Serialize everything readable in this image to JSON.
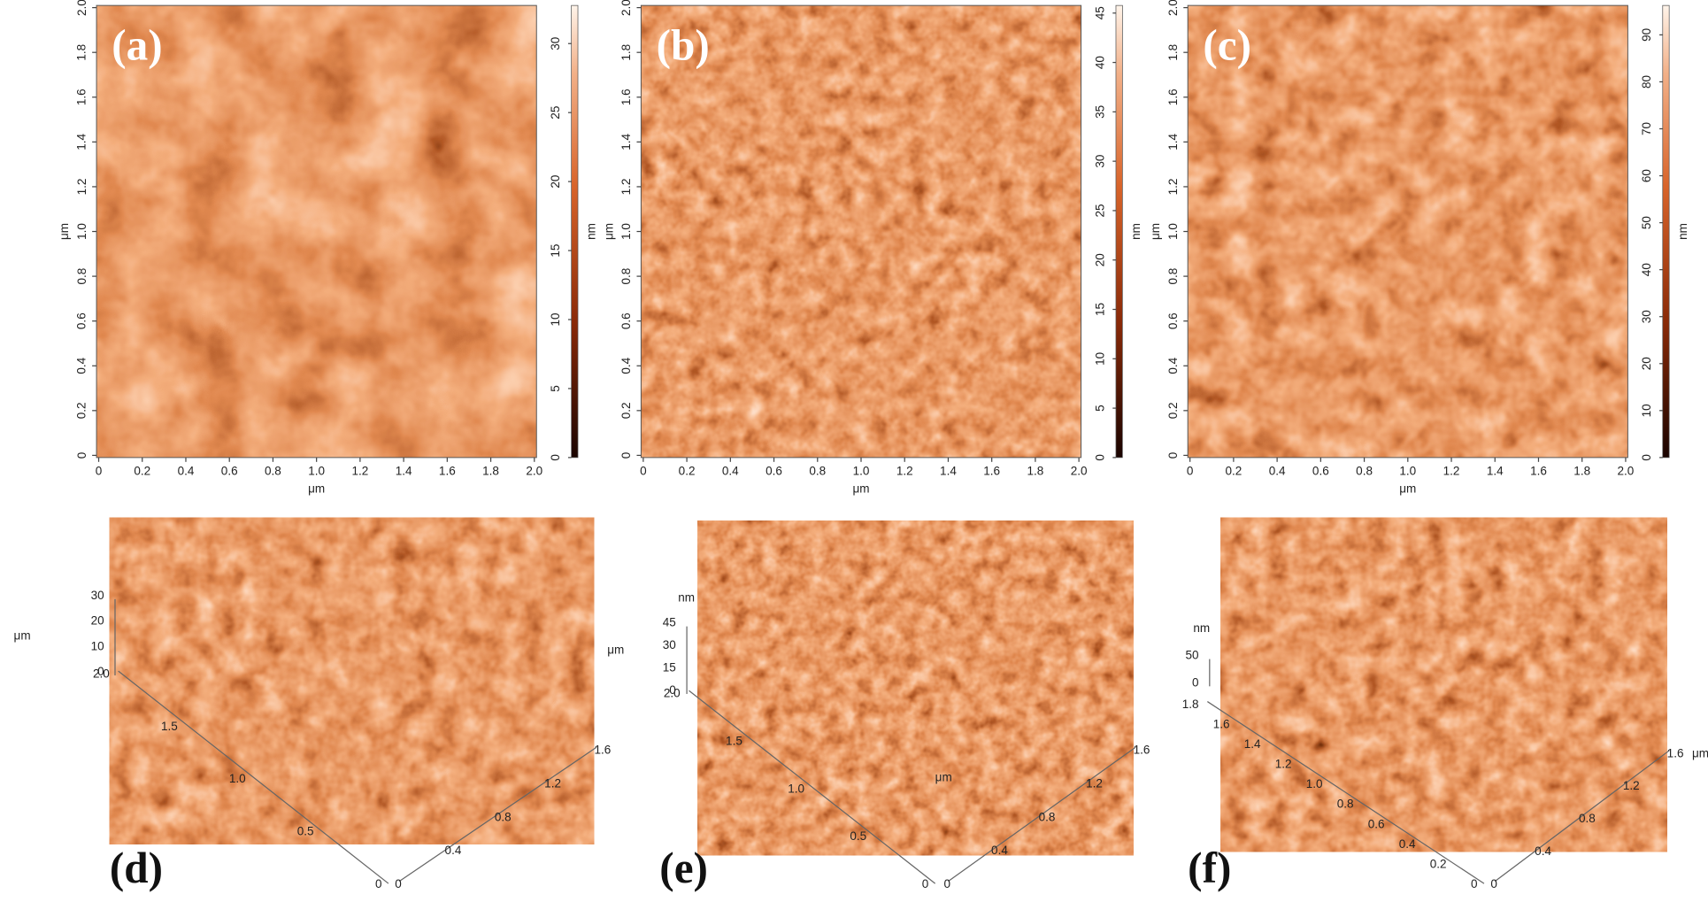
{
  "panels_2d": [
    {
      "label": "(a)",
      "x_ticks": [
        "0",
        "0.2",
        "0.4",
        "0.6",
        "0.8",
        "1.0",
        "1.2",
        "1.4",
        "1.6",
        "1.8",
        "2.0"
      ],
      "y_ticks": [
        "0",
        "0.2",
        "0.4",
        "0.6",
        "0.8",
        "1.0",
        "1.2",
        "1.4",
        "1.6",
        "1.8",
        "2.0"
      ],
      "x_axis_label": "μm",
      "y_axis_label": "μm",
      "colorbar_ticks": [
        "0",
        "5",
        "10",
        "15",
        "20",
        "25",
        "30"
      ],
      "colorbar_unit": "nm"
    },
    {
      "label": "(b)",
      "x_ticks": [
        "0",
        "0.2",
        "0.4",
        "0.6",
        "0.8",
        "1.0",
        "1.2",
        "1.4",
        "1.6",
        "1.8",
        "2.0"
      ],
      "y_ticks": [
        "0",
        "0.2",
        "0.4",
        "0.6",
        "0.8",
        "1.0",
        "1.2",
        "1.4",
        "1.6",
        "1.8",
        "2.0"
      ],
      "x_axis_label": "μm",
      "y_axis_label": "μm",
      "colorbar_ticks": [
        "0",
        "5",
        "10",
        "15",
        "20",
        "25",
        "30",
        "35",
        "40",
        "45"
      ],
      "colorbar_unit": "nm"
    },
    {
      "label": "(c)",
      "x_ticks": [
        "0",
        "0.2",
        "0.4",
        "0.6",
        "0.8",
        "1.0",
        "1.2",
        "1.4",
        "1.6",
        "1.8",
        "2.0"
      ],
      "y_ticks": [
        "0",
        "0.2",
        "0.4",
        "0.6",
        "0.8",
        "1.0",
        "1.2",
        "1.4",
        "1.6",
        "1.8",
        "2.0"
      ],
      "x_axis_label": "μm",
      "y_axis_label": "μm",
      "colorbar_ticks": [
        "0",
        "10",
        "20",
        "30",
        "40",
        "50",
        "60",
        "70",
        "80",
        "90"
      ],
      "colorbar_unit": "nm"
    }
  ],
  "panels_3d": [
    {
      "label": "(d)",
      "z_unit": "μm",
      "z_ticks": [
        "30",
        "20",
        "10",
        "0"
      ],
      "depth_ticks": [
        "2.0",
        "1.5",
        "1.0",
        "0.5",
        "0"
      ],
      "width_ticks": [
        "0",
        "0.4",
        "0.8",
        "1.2",
        "1.6"
      ],
      "axis_unit": "μm"
    },
    {
      "label": "(e)",
      "z_unit": "nm",
      "z_ticks": [
        "45",
        "30",
        "15",
        "0"
      ],
      "depth_ticks": [
        "2.0",
        "1.5",
        "1.0",
        "0.5",
        "0"
      ],
      "width_ticks": [
        "0",
        "0.4",
        "0.8",
        "1.2",
        "1.6"
      ],
      "axis_unit": "μm"
    },
    {
      "label": "(f)",
      "z_unit": "nm",
      "z_ticks": [
        "50",
        "0"
      ],
      "depth_ticks": [
        "1.8",
        "1.6",
        "1.4",
        "1.2",
        "1.0",
        "0.8",
        "0.6",
        "0.4",
        "0.2",
        "0"
      ],
      "width_ticks": [
        "0",
        "0.4",
        "0.8",
        "1.2",
        "1.6"
      ],
      "axis_unit": "μm"
    }
  ]
}
